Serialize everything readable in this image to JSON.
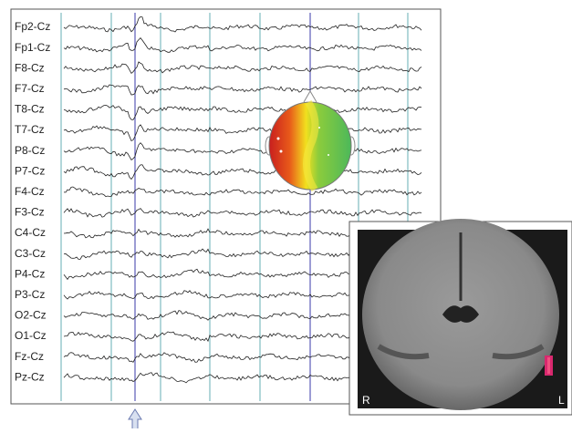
{
  "eeg": {
    "channels": [
      "Fp2-Cz",
      "Fp1-Cz",
      "F8-Cz",
      "F7-Cz",
      "T8-Cz",
      "T7-Cz",
      "P8-Cz",
      "P7-Cz",
      "F4-Cz",
      "F3-Cz",
      "C4-Cz",
      "C3-Cz",
      "P4-Cz",
      "P3-Cz",
      "O2-Cz",
      "O1-Cz",
      "Fz-Cz",
      "Pz-Cz"
    ]
  },
  "mri": {
    "side_left": "R",
    "side_right": "L"
  }
}
